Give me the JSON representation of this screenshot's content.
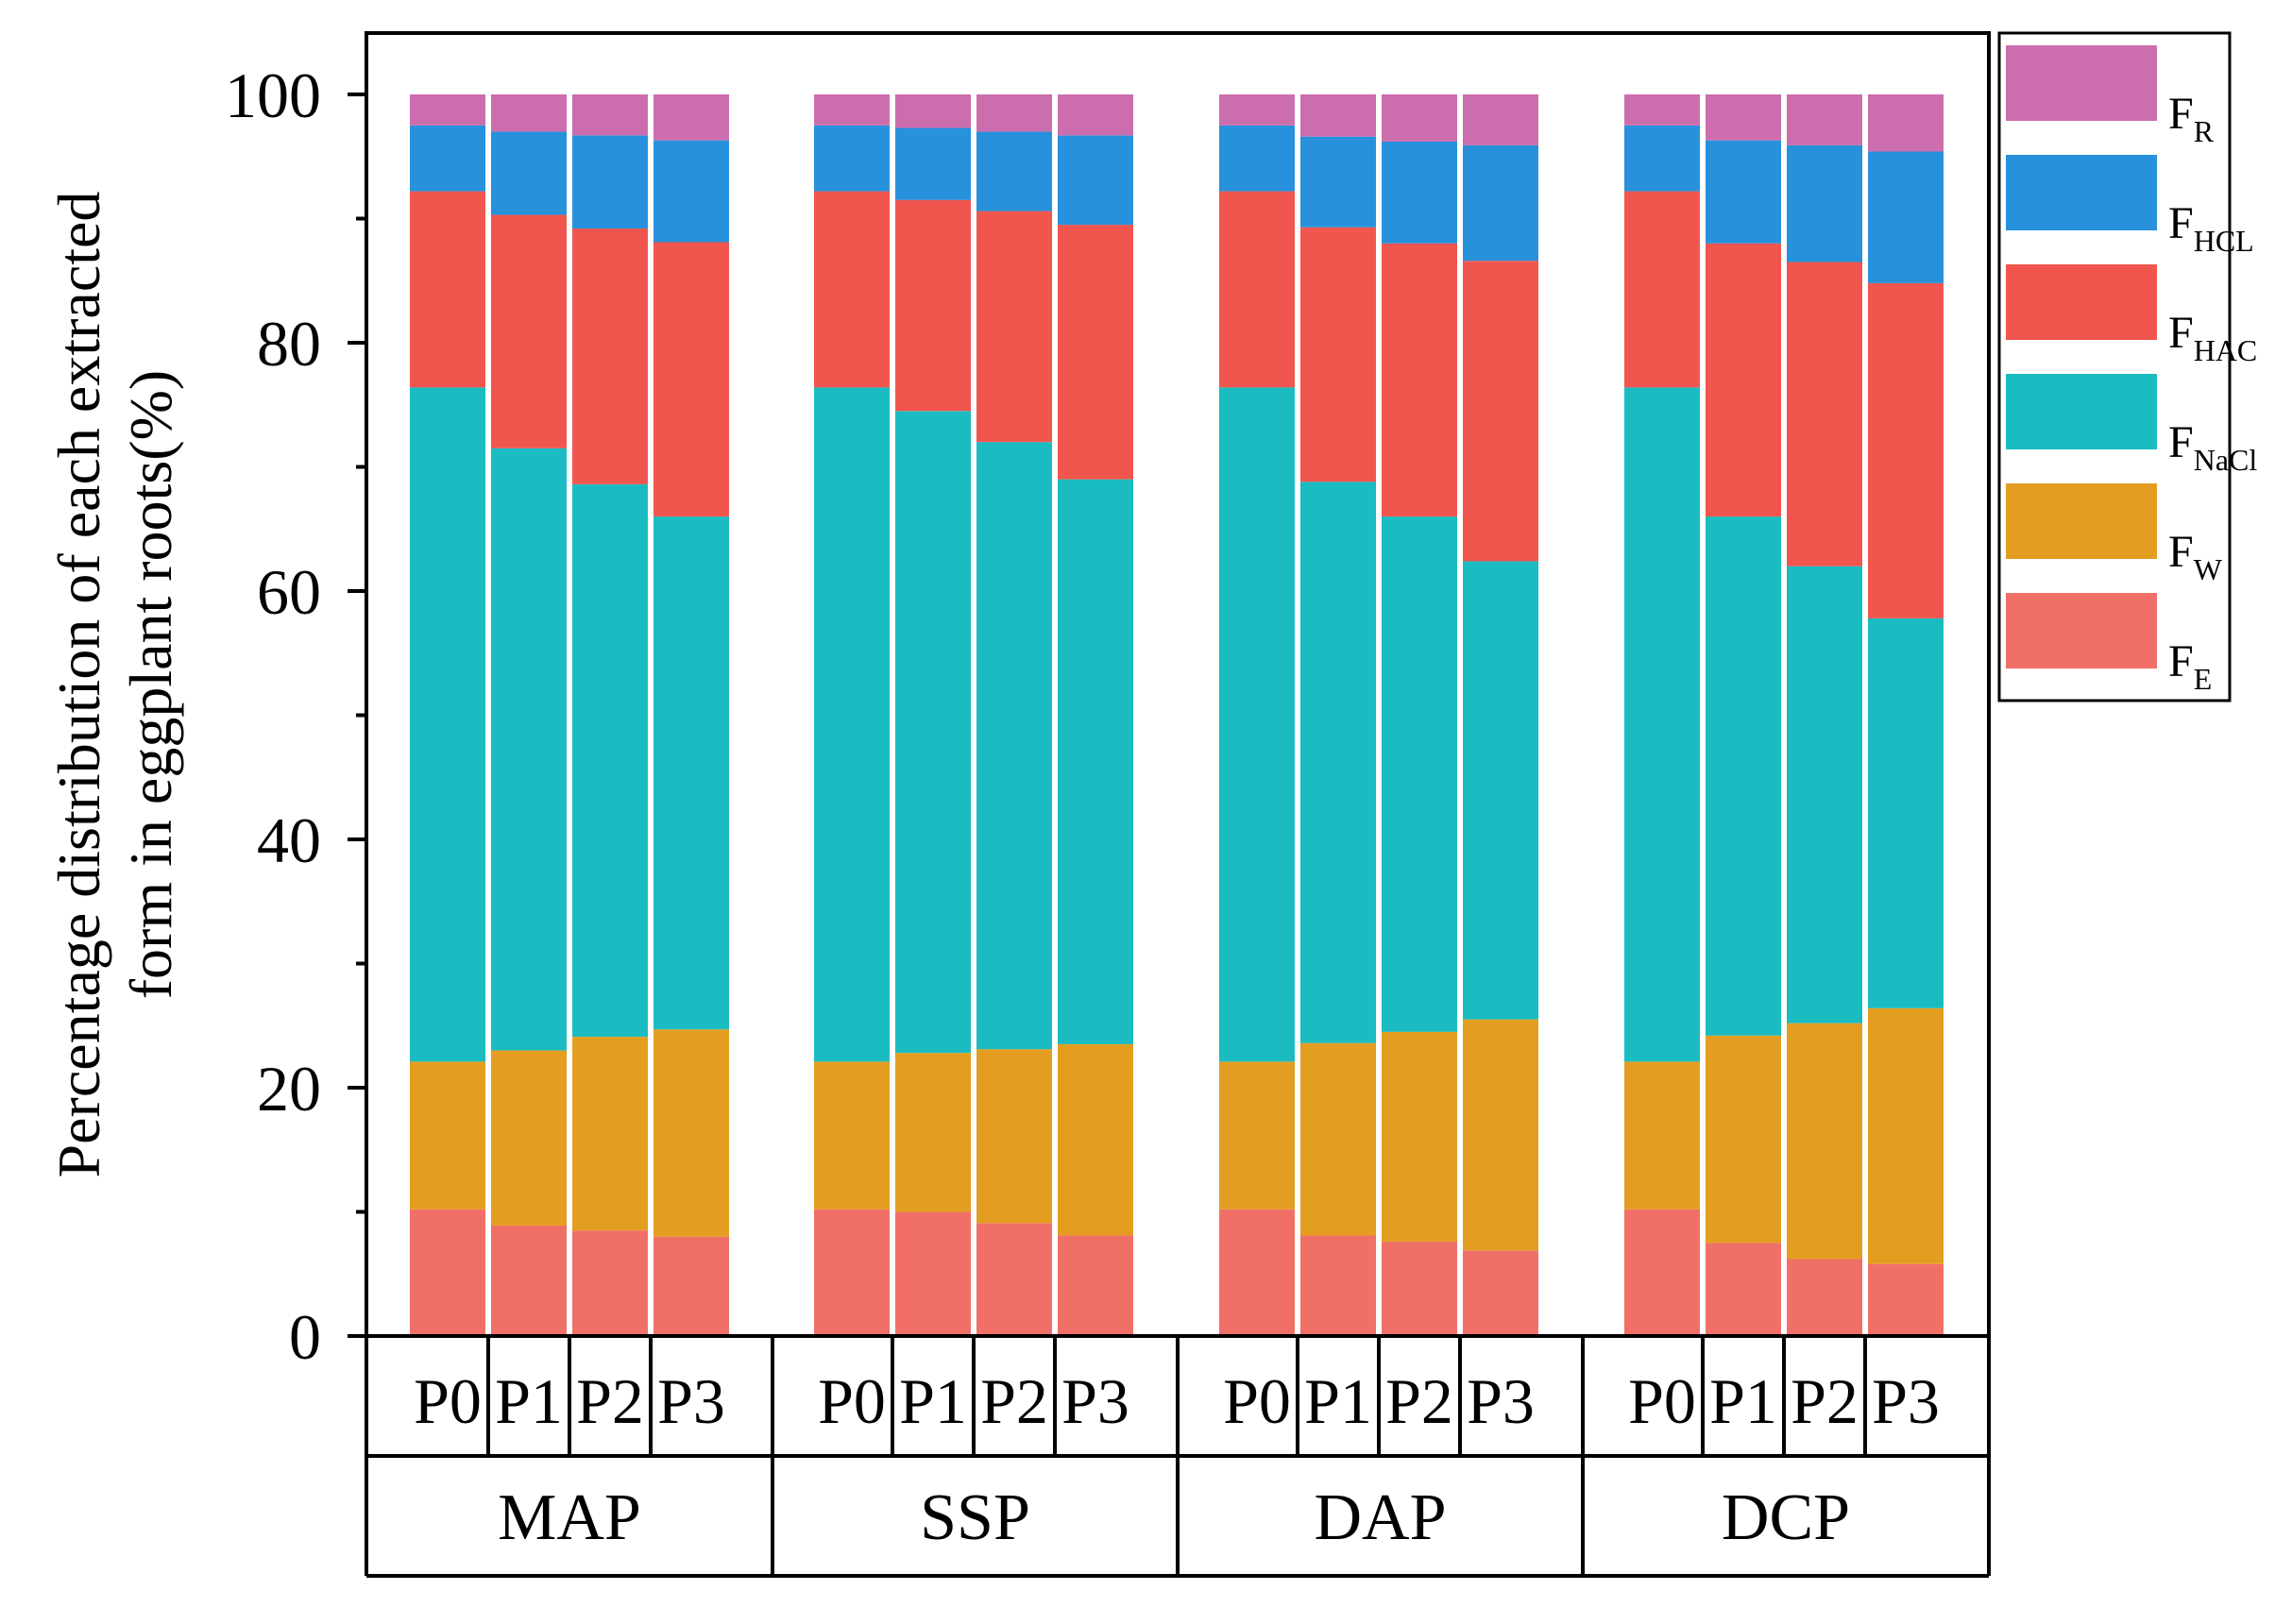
{
  "chart_data": {
    "type": "bar",
    "stacked": true,
    "ylabel_lines": [
      "Percentage distribution of each extracted",
      "form in eggplant roots(%)"
    ],
    "ylim": [
      0,
      100
    ],
    "yticks": [
      "0",
      "20",
      "40",
      "60",
      "80",
      "100"
    ],
    "groups": [
      "MAP",
      "SSP",
      "DAP",
      "DCP"
    ],
    "subcategories": [
      "P0",
      "P1",
      "P2",
      "P3"
    ],
    "categories": [
      "MAP P0",
      "MAP P1",
      "MAP P2",
      "MAP P3",
      "SSP P0",
      "SSP P1",
      "SSP P2",
      "SSP P3",
      "DAP P0",
      "DAP P1",
      "DAP P2",
      "DAP P3",
      "DCP P0",
      "DCP P1",
      "DCP P2",
      "DCP P3"
    ],
    "series": [
      {
        "name": "F",
        "sub": "E",
        "color": "#F07068",
        "values": [
          10.2,
          8.9,
          8.5,
          8.0,
          10.2,
          10.0,
          9.1,
          8.1,
          10.2,
          8.1,
          7.6,
          6.9,
          10.2,
          7.5,
          6.2,
          5.8
        ]
      },
      {
        "name": "F",
        "sub": "W",
        "color": "#E39E22",
        "values": [
          11.9,
          14.1,
          15.6,
          16.7,
          11.9,
          12.8,
          14.0,
          15.4,
          11.9,
          15.5,
          16.9,
          18.6,
          11.9,
          16.7,
          19.0,
          20.6
        ]
      },
      {
        "name": "F",
        "sub": "NaCl",
        "color": "#1BBCC1",
        "values": [
          54.3,
          48.5,
          44.5,
          41.3,
          54.3,
          51.7,
          48.9,
          45.5,
          54.3,
          45.2,
          41.5,
          36.9,
          54.3,
          41.8,
          36.8,
          31.4
        ]
      },
      {
        "name": "F",
        "sub": "HAC",
        "color": "#F0564E",
        "values": [
          15.8,
          18.8,
          20.6,
          22.1,
          15.8,
          17.0,
          18.6,
          20.5,
          15.8,
          20.5,
          22.0,
          24.2,
          15.8,
          22.0,
          24.5,
          27.0
        ]
      },
      {
        "name": "F",
        "sub": "HCL",
        "color": "#2891DB",
        "values": [
          5.3,
          6.7,
          7.5,
          8.2,
          5.3,
          5.8,
          6.4,
          7.2,
          5.3,
          7.3,
          8.2,
          9.3,
          5.3,
          8.3,
          9.4,
          10.6
        ]
      },
      {
        "name": "F",
        "sub": "R",
        "color": "#CC6EAE",
        "values": [
          2.5,
          3.0,
          3.3,
          3.7,
          2.5,
          2.7,
          3.0,
          3.3,
          2.5,
          3.4,
          3.8,
          4.1,
          2.5,
          3.7,
          4.1,
          4.6
        ]
      }
    ],
    "legend_order": [
      "R",
      "HCL",
      "HAC",
      "NaCl",
      "W",
      "E"
    ],
    "legend_position": "right",
    "grid": false
  }
}
